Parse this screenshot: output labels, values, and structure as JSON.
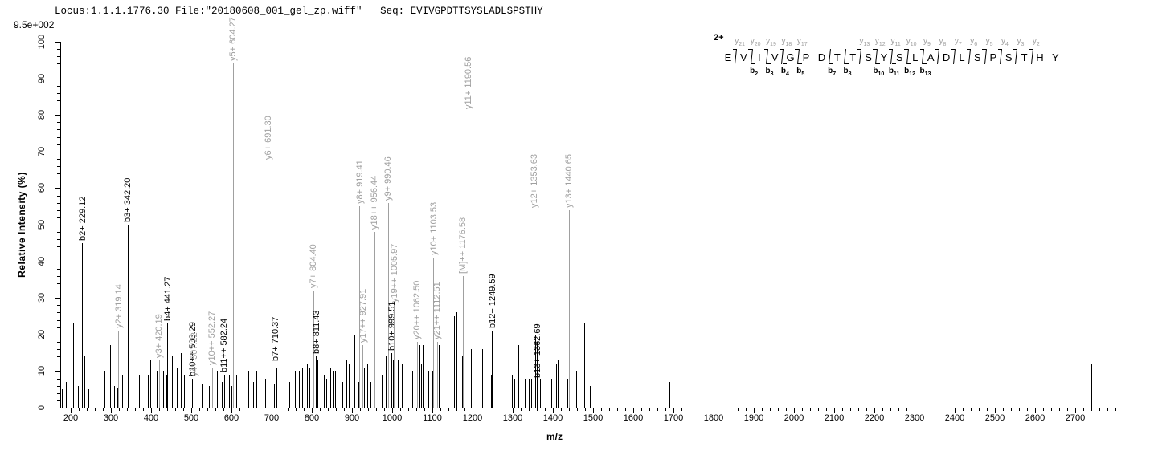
{
  "header": {
    "title": "Locus:1.1.1.1776.30 File:\"20180608_001_gel_zp.wiff\"   Seq: EVIVGPDTTSYSLADLSPSTHY",
    "max_intensity_note": "9.5e+002"
  },
  "colors": {
    "b_ion": "#000000",
    "y_ion": "#a0a0a0",
    "peak_default": "#000000",
    "axis": "#000000"
  },
  "chart_data": {
    "type": "bar",
    "subtype": "ms2-stick-spectrum",
    "title": "Locus:1.1.1.1776.30 File:\"20180608_001_gel_zp.wiff\"   Seq: EVIVGPDTTSYSLADLSPSTHY",
    "xlabel": "m/z",
    "ylabel": "Relative  Intensity (%)",
    "x_range": [
      174,
      2840
    ],
    "ylim": [
      0,
      100
    ],
    "grid": false,
    "x_major_ticks": [
      200,
      300,
      400,
      500,
      600,
      700,
      800,
      900,
      1000,
      1100,
      1200,
      1300,
      1400,
      1500,
      1600,
      1700,
      1800,
      1900,
      2000,
      2100,
      2200,
      2300,
      2400,
      2500,
      2600,
      2700
    ],
    "x_minor_tick_step": 20,
    "x_minor_start": 180,
    "x_minor_end": 2800,
    "y_major_ticks": [
      0,
      10,
      20,
      30,
      40,
      50,
      60,
      70,
      80,
      90,
      100
    ],
    "y_minor_tick_step": 2,
    "labeled_peaks": [
      {
        "label": "b2+ 229.12",
        "mz": 229.12,
        "intensity": 45,
        "series": "b"
      },
      {
        "label": "y2+ 319.14",
        "mz": 319.14,
        "intensity": 21,
        "series": "y"
      },
      {
        "label": "b3+ 342.20",
        "mz": 342.2,
        "intensity": 50,
        "series": "b"
      },
      {
        "label": "y3+ 420.19",
        "mz": 420.19,
        "intensity": 13,
        "series": "y"
      },
      {
        "label": "b4+ 441.27",
        "mz": 441.27,
        "intensity": 23,
        "series": "b"
      },
      {
        "label": "b10++ 503.29",
        "mz": 503.29,
        "intensity": 8,
        "series": "b"
      },
      {
        "label": "y4+ 507.22",
        "mz": 507.22,
        "intensity": 8,
        "series": "y"
      },
      {
        "label": "y10++ 552.27",
        "mz": 552.27,
        "intensity": 11,
        "series": "y"
      },
      {
        "label": "b11++ 582.24",
        "mz": 582.24,
        "intensity": 9,
        "series": "b"
      },
      {
        "label": "y5+ 604.27",
        "mz": 604.27,
        "intensity": 94,
        "series": "y"
      },
      {
        "label": "y6+ 691.30",
        "mz": 691.3,
        "intensity": 67,
        "series": "y"
      },
      {
        "label": "b7+ 710.37",
        "mz": 710.37,
        "intensity": 12,
        "series": "b"
      },
      {
        "label": "y7+ 804.40",
        "mz": 804.4,
        "intensity": 32,
        "series": "y"
      },
      {
        "label": "b8+ 811.43",
        "mz": 811.43,
        "intensity": 14,
        "series": "b"
      },
      {
        "label": "y8+ 919.41",
        "mz": 919.41,
        "intensity": 55,
        "series": "y"
      },
      {
        "label": "y17++ 927.91",
        "mz": 927.91,
        "intensity": 17,
        "series": "y"
      },
      {
        "label": "y18++ 956.44",
        "mz": 956.44,
        "intensity": 48,
        "series": "y"
      },
      {
        "label": "y9+ 990.46",
        "mz": 990.46,
        "intensity": 56,
        "series": "y"
      },
      {
        "label": "b10+ 999.51",
        "mz": 999.51,
        "intensity": 15,
        "series": "b"
      },
      {
        "label": "y19++ 1005.97",
        "mz": 1005.97,
        "intensity": 28,
        "series": "y"
      },
      {
        "label": "y20++ 1062.50",
        "mz": 1062.5,
        "intensity": 18,
        "series": "y"
      },
      {
        "label": "y10+ 1103.53",
        "mz": 1103.53,
        "intensity": 41,
        "series": "y"
      },
      {
        "label": "y21++ 1112.51",
        "mz": 1112.51,
        "intensity": 18,
        "series": "y"
      },
      {
        "label": "[M]++ 1176.58",
        "mz": 1176.58,
        "intensity": 36,
        "series": "y"
      },
      {
        "label": "y11+ 1190.56",
        "mz": 1190.56,
        "intensity": 81,
        "series": "y"
      },
      {
        "label": "b12+ 1249.59",
        "mz": 1249.59,
        "intensity": 21,
        "series": "b"
      },
      {
        "label": "y12+ 1353.63",
        "mz": 1353.63,
        "intensity": 54,
        "series": "y"
      },
      {
        "label": "b13+ 1362.69",
        "mz": 1362.69,
        "intensity": 7.5,
        "series": "b"
      },
      {
        "label": "y13+ 1440.65",
        "mz": 1440.65,
        "intensity": 54,
        "series": "y"
      }
    ],
    "unlabeled_peaks": [
      [
        178,
        5
      ],
      [
        189,
        7
      ],
      [
        207,
        23
      ],
      [
        212,
        11
      ],
      [
        219,
        6
      ],
      [
        234,
        14
      ],
      [
        245,
        5
      ],
      [
        284,
        10
      ],
      [
        299,
        17
      ],
      [
        309,
        6
      ],
      [
        316,
        5.5
      ],
      [
        329,
        9
      ],
      [
        334,
        8
      ],
      [
        354,
        8
      ],
      [
        371,
        9
      ],
      [
        384,
        13
      ],
      [
        392,
        9
      ],
      [
        399,
        13
      ],
      [
        405,
        9
      ],
      [
        414,
        10
      ],
      [
        431,
        10
      ],
      [
        439,
        9
      ],
      [
        452,
        14
      ],
      [
        465,
        11
      ],
      [
        474,
        15
      ],
      [
        483,
        9
      ],
      [
        497,
        7
      ],
      [
        517,
        10
      ],
      [
        527,
        6.5
      ],
      [
        544,
        6
      ],
      [
        564,
        10
      ],
      [
        577,
        7
      ],
      [
        594,
        9
      ],
      [
        601,
        6
      ],
      [
        612,
        9
      ],
      [
        628,
        16
      ],
      [
        643,
        10
      ],
      [
        654,
        7
      ],
      [
        663,
        10
      ],
      [
        671,
        7
      ],
      [
        685,
        8
      ],
      [
        707,
        6.5
      ],
      [
        713,
        11
      ],
      [
        744,
        7
      ],
      [
        753,
        7
      ],
      [
        759,
        10
      ],
      [
        769,
        10
      ],
      [
        776,
        11
      ],
      [
        782,
        12
      ],
      [
        789,
        12
      ],
      [
        794,
        11
      ],
      [
        802,
        13
      ],
      [
        815,
        13
      ],
      [
        822,
        8
      ],
      [
        831,
        9
      ],
      [
        837,
        8
      ],
      [
        847,
        11
      ],
      [
        853,
        10
      ],
      [
        859,
        10
      ],
      [
        877,
        7
      ],
      [
        887,
        13
      ],
      [
        892,
        12
      ],
      [
        907,
        20
      ],
      [
        916,
        7
      ],
      [
        931,
        11
      ],
      [
        939,
        12
      ],
      [
        947,
        7
      ],
      [
        967,
        8
      ],
      [
        975,
        9
      ],
      [
        984,
        14
      ],
      [
        996,
        14
      ],
      [
        1003,
        13
      ],
      [
        1014,
        13
      ],
      [
        1024,
        12
      ],
      [
        1051,
        10
      ],
      [
        1068,
        17
      ],
      [
        1072,
        12
      ],
      [
        1076,
        17
      ],
      [
        1090,
        10
      ],
      [
        1101,
        10
      ],
      [
        1117,
        17
      ],
      [
        1155,
        25
      ],
      [
        1161,
        26
      ],
      [
        1169,
        23
      ],
      [
        1174,
        14
      ],
      [
        1196,
        16
      ],
      [
        1211,
        18
      ],
      [
        1224,
        16
      ],
      [
        1246,
        9
      ],
      [
        1271,
        25
      ],
      [
        1298,
        9
      ],
      [
        1304,
        8
      ],
      [
        1314,
        17
      ],
      [
        1323,
        21
      ],
      [
        1331,
        8
      ],
      [
        1341,
        8
      ],
      [
        1347,
        8
      ],
      [
        1356,
        20
      ],
      [
        1360,
        18
      ],
      [
        1368,
        8
      ],
      [
        1397,
        8
      ],
      [
        1408,
        12
      ],
      [
        1413,
        13
      ],
      [
        1436,
        8
      ],
      [
        1454,
        16
      ],
      [
        1459,
        10
      ],
      [
        1478,
        23
      ],
      [
        1492,
        6
      ],
      [
        1690,
        7
      ],
      [
        2740,
        12
      ]
    ]
  },
  "sequence_panel": {
    "charge_label": "2+",
    "residues": [
      "E",
      "V",
      "I",
      "V",
      "G",
      "P",
      "D",
      "T",
      "T",
      "S",
      "Y",
      "S",
      "L",
      "A",
      "D",
      "L",
      "S",
      "P",
      "S",
      "T",
      "H",
      "Y"
    ],
    "fragments": [
      {
        "gap": 1,
        "y": "y21"
      },
      {
        "gap": 2,
        "y": "y20",
        "b": "b2"
      },
      {
        "gap": 3,
        "y": "y19",
        "b": "b3"
      },
      {
        "gap": 4,
        "y": "y18",
        "b": "b4"
      },
      {
        "gap": 5,
        "y": "y17",
        "b": "b5"
      },
      {
        "gap": 7,
        "b": "b7"
      },
      {
        "gap": 8,
        "b": "b8"
      },
      {
        "gap": 9,
        "y": "y13"
      },
      {
        "gap": 10,
        "y": "y12",
        "b": "b10"
      },
      {
        "gap": 11,
        "y": "y11",
        "b": "b11"
      },
      {
        "gap": 12,
        "y": "y10",
        "b": "b12"
      },
      {
        "gap": 13,
        "y": "y9",
        "b": "b13"
      },
      {
        "gap": 14,
        "y": "y8"
      },
      {
        "gap": 15,
        "y": "y7"
      },
      {
        "gap": 16,
        "y": "y6"
      },
      {
        "gap": 17,
        "y": "y5"
      },
      {
        "gap": 18,
        "y": "y4"
      },
      {
        "gap": 19,
        "y": "y3"
      },
      {
        "gap": 20,
        "y": "y2"
      }
    ]
  }
}
